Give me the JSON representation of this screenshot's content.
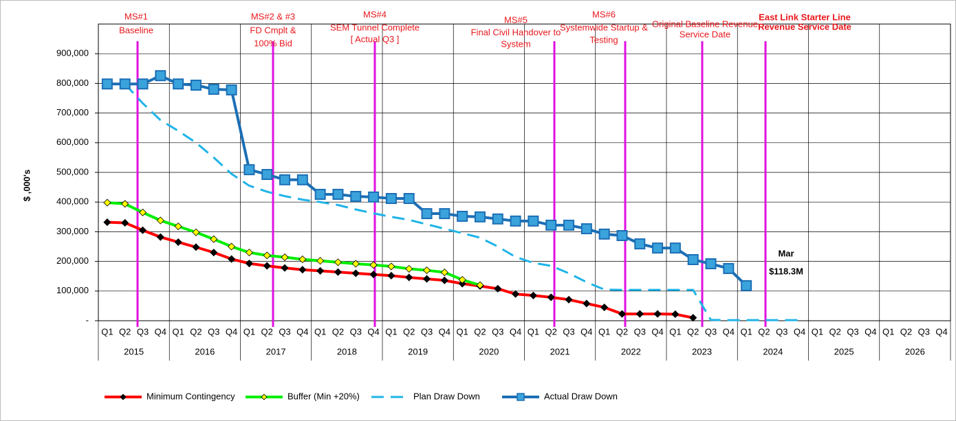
{
  "chart_data": {
    "type": "line",
    "y_label": "$ ,000's",
    "categories": [
      "Q1",
      "Q2",
      "Q3",
      "Q4",
      "Q1",
      "Q2",
      "Q3",
      "Q4",
      "Q1",
      "Q2",
      "Q3",
      "Q4",
      "Q1",
      "Q2",
      "Q3",
      "Q4",
      "Q1",
      "Q2",
      "Q3",
      "Q4",
      "Q1",
      "Q2",
      "Q3",
      "Q4",
      "Q1",
      "Q2",
      "Q3",
      "Q4",
      "Q1",
      "Q2",
      "Q3",
      "Q4",
      "Q1",
      "Q2",
      "Q3",
      "Q4",
      "Q1",
      "Q2",
      "Q3",
      "Q4",
      "Q1",
      "Q2",
      "Q3",
      "Q4",
      "Q1",
      "Q2",
      "Q3",
      "Q4"
    ],
    "category_groups": [
      "2015",
      "2016",
      "2017",
      "2018",
      "2019",
      "2020",
      "2021",
      "2022",
      "2023",
      "2024",
      "2025",
      "2026"
    ],
    "ylim": [
      0,
      1000000
    ],
    "yticks": [
      {
        "value": 0,
        "label": "-"
      },
      {
        "value": 100000,
        "label": "100,000"
      },
      {
        "value": 200000,
        "label": "200,000"
      },
      {
        "value": 300000,
        "label": "300,000"
      },
      {
        "value": 400000,
        "label": "400,000"
      },
      {
        "value": 500000,
        "label": "500,000"
      },
      {
        "value": 600000,
        "label": "600,000"
      },
      {
        "value": 700000,
        "label": "700,000"
      },
      {
        "value": 800000,
        "label": "800,000"
      },
      {
        "value": 900000,
        "label": "900,000"
      }
    ],
    "grid": true,
    "series": [
      {
        "name": "Minimum Contingency",
        "color": "#ff0000",
        "marker": "diamond",
        "marker_color": "#000000",
        "dashed": false,
        "values": [
          332000,
          330000,
          305000,
          282000,
          265000,
          248000,
          230000,
          208000,
          193000,
          185000,
          178000,
          172000,
          168000,
          164000,
          160000,
          156000,
          152000,
          146000,
          141000,
          136000,
          125000,
          117000,
          108000,
          90000,
          85000,
          79000,
          71000,
          58000,
          45000,
          23000,
          23000,
          23000,
          22000,
          10000,
          null,
          null,
          null,
          null,
          null,
          null,
          null,
          null,
          null,
          null,
          null,
          null,
          null,
          null
        ]
      },
      {
        "name": "Buffer (Min +20%)",
        "color": "#00ee00",
        "marker": "diamond",
        "marker_color": "#ffff00",
        "dashed": false,
        "values": [
          398000,
          394000,
          365000,
          338000,
          318000,
          298000,
          275000,
          250000,
          230000,
          220000,
          214000,
          207000,
          202000,
          197000,
          192000,
          188000,
          183000,
          175000,
          170000,
          163000,
          138000,
          120000,
          null,
          null,
          null,
          null,
          null,
          null,
          null,
          null,
          null,
          null,
          null,
          null,
          null,
          null,
          null,
          null,
          null,
          null,
          null,
          null,
          null,
          null,
          null,
          null,
          null,
          null
        ]
      },
      {
        "name": "Plan Draw Down",
        "color": "#1fb4e8",
        "marker": "none",
        "marker_color": "#1fb4e8",
        "dashed": true,
        "values": [
          null,
          798000,
          733000,
          676000,
          640000,
          600000,
          550000,
          495000,
          455000,
          435000,
          420000,
          408000,
          400000,
          390000,
          375000,
          362000,
          350000,
          340000,
          325000,
          310000,
          295000,
          280000,
          250000,
          215000,
          195000,
          185000,
          160000,
          130000,
          105000,
          104000,
          104000,
          104000,
          104000,
          104000,
          3000,
          2000,
          2000,
          2000,
          2000,
          2000,
          null,
          null,
          null,
          null,
          null,
          null,
          null,
          null
        ]
      },
      {
        "name": "Actual Draw Down",
        "color": "#1c6fb5",
        "marker": "square",
        "marker_color": "#3ba3dc",
        "dashed": false,
        "values": [
          798000,
          798000,
          798000,
          826000,
          798000,
          794000,
          780000,
          778000,
          509000,
          493000,
          475000,
          475000,
          426000,
          426000,
          419000,
          417000,
          412000,
          412000,
          361000,
          361000,
          352000,
          350000,
          343000,
          336000,
          336000,
          322000,
          322000,
          310000,
          292000,
          287000,
          259000,
          245000,
          245000,
          206000,
          192000,
          176000,
          118300,
          null,
          null,
          null,
          null,
          null,
          null,
          null,
          null,
          null,
          null,
          null
        ]
      }
    ],
    "milestones": [
      {
        "lines": [
          "MS#1",
          "Baseline"
        ]
      },
      {
        "lines": [
          "MS#2 & #3",
          "FD Cmplt &",
          "100% Bid"
        ]
      },
      {
        "lines": [
          "MS#4",
          "SEM Tunnel Complete",
          "[ Actual Q3 ]"
        ]
      },
      {
        "lines": [
          "MS#5",
          "Final Civil Handover to",
          "System"
        ]
      },
      {
        "lines": [
          "MS#6",
          "Systemwide Startup &",
          "Testing"
        ]
      },
      {
        "lines": [
          "Original Baseline Revenue",
          "Service Date"
        ]
      },
      {
        "lines": [
          "East Link Starter Line",
          "Revenue Service Date"
        ]
      }
    ],
    "callout": {
      "lines": [
        "Mar",
        "$118.3M"
      ]
    }
  }
}
